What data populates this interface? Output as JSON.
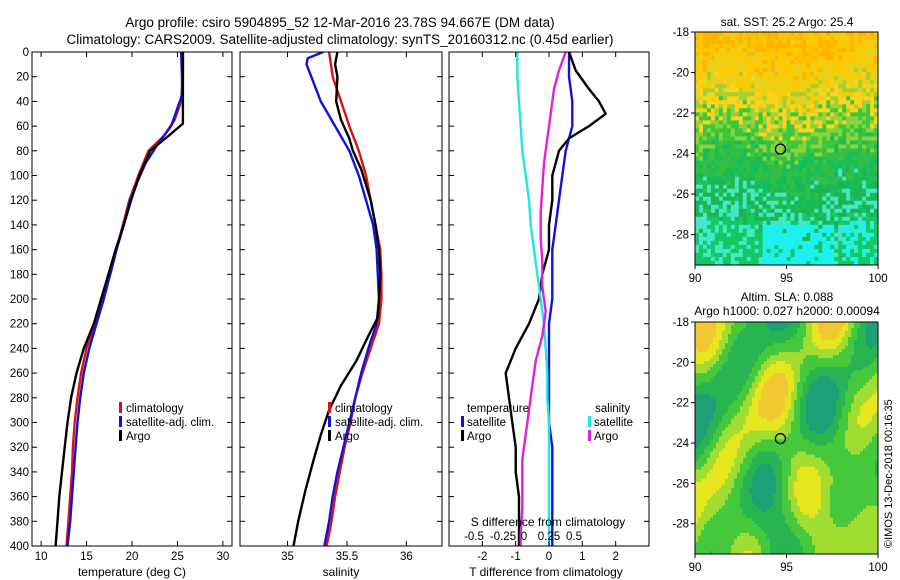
{
  "title": {
    "line1": "Argo profile: csiro 5904895_52 12-Mar-2016 23.78S 94.667E (DM data)",
    "line2": "Climatology: CARS2009. Satellite-adjusted climatology: synTS_20160312.nc (0.45d earlier)"
  },
  "colors": {
    "climatology": "#dd1111",
    "satellite": "#1111dd",
    "argo": "#000000",
    "sal_satellite": "#22e6e6",
    "sal_argo": "#dd22dd"
  },
  "chart_data": [
    {
      "type": "line",
      "id": "temperature",
      "xlabel": "temperature (deg C)",
      "ylabel": "",
      "xlim": [
        9,
        31
      ],
      "ylim": [
        400,
        0
      ],
      "xticks": [
        10,
        15,
        20,
        25,
        30
      ],
      "yticks": [
        0,
        20,
        40,
        60,
        80,
        100,
        120,
        140,
        160,
        180,
        200,
        220,
        240,
        260,
        280,
        300,
        320,
        340,
        360,
        380,
        400
      ],
      "legend": [
        "climatology",
        "satellite-adj. clim.",
        "Argo"
      ],
      "series": [
        {
          "name": "climatology",
          "color": "#dd1111",
          "points": [
            [
              25.6,
              0
            ],
            [
              25.6,
              20
            ],
            [
              25.4,
              40
            ],
            [
              24.7,
              55
            ],
            [
              23.5,
              68
            ],
            [
              21.8,
              80
            ],
            [
              20.7,
              100
            ],
            [
              19.7,
              120
            ],
            [
              19.0,
              140
            ],
            [
              18.3,
              160
            ],
            [
              17.6,
              180
            ],
            [
              16.7,
              200
            ],
            [
              15.9,
              220
            ],
            [
              15.0,
              240
            ],
            [
              14.4,
              260
            ],
            [
              14.0,
              280
            ],
            [
              13.7,
              300
            ],
            [
              13.5,
              320
            ],
            [
              13.4,
              340
            ],
            [
              13.2,
              360
            ],
            [
              13.0,
              380
            ],
            [
              12.8,
              400
            ]
          ]
        },
        {
          "name": "satellite-adj. clim.",
          "color": "#1111dd",
          "points": [
            [
              25.4,
              0
            ],
            [
              25.5,
              20
            ],
            [
              25.5,
              35
            ],
            [
              24.3,
              60
            ],
            [
              22.8,
              75
            ],
            [
              21.5,
              90
            ],
            [
              20.6,
              105
            ],
            [
              19.8,
              120
            ],
            [
              19.1,
              140
            ],
            [
              18.3,
              160
            ],
            [
              17.6,
              180
            ],
            [
              16.9,
              200
            ],
            [
              16.1,
              220
            ],
            [
              15.3,
              240
            ],
            [
              14.7,
              260
            ],
            [
              14.3,
              280
            ],
            [
              14.0,
              300
            ],
            [
              13.8,
              320
            ],
            [
              13.6,
              340
            ],
            [
              13.4,
              360
            ],
            [
              13.2,
              380
            ],
            [
              12.9,
              400
            ]
          ]
        },
        {
          "name": "Argo",
          "color": "#000000",
          "points": [
            [
              25.6,
              0
            ],
            [
              25.6,
              20
            ],
            [
              25.6,
              40
            ],
            [
              25.6,
              58
            ],
            [
              24.0,
              68
            ],
            [
              22.0,
              80
            ],
            [
              20.8,
              100
            ],
            [
              19.9,
              120
            ],
            [
              19.1,
              140
            ],
            [
              18.2,
              160
            ],
            [
              17.4,
              180
            ],
            [
              16.6,
              200
            ],
            [
              15.8,
              220
            ],
            [
              14.7,
              240
            ],
            [
              13.9,
              260
            ],
            [
              13.3,
              280
            ],
            [
              12.9,
              300
            ],
            [
              12.6,
              320
            ],
            [
              12.3,
              340
            ],
            [
              12.0,
              360
            ],
            [
              11.8,
              380
            ],
            [
              11.6,
              400
            ]
          ]
        }
      ]
    },
    {
      "type": "line",
      "id": "salinity",
      "xlabel": "salinity",
      "xlim": [
        34.6,
        36.3
      ],
      "ylim": [
        400,
        0
      ],
      "xticks": [
        35,
        35.5,
        36
      ],
      "legend": [
        "climatology",
        "satellite-adj. clim.",
        "Argo"
      ],
      "series": [
        {
          "name": "climatology",
          "color": "#dd1111",
          "points": [
            [
              35.35,
              0
            ],
            [
              35.38,
              20
            ],
            [
              35.45,
              40
            ],
            [
              35.52,
              60
            ],
            [
              35.6,
              80
            ],
            [
              35.66,
              100
            ],
            [
              35.7,
              120
            ],
            [
              35.74,
              140
            ],
            [
              35.78,
              160
            ],
            [
              35.79,
              180
            ],
            [
              35.79,
              200
            ],
            [
              35.77,
              220
            ],
            [
              35.7,
              240
            ],
            [
              35.63,
              260
            ],
            [
              35.57,
              280
            ],
            [
              35.53,
              300
            ],
            [
              35.48,
              320
            ],
            [
              35.44,
              340
            ],
            [
              35.4,
              360
            ],
            [
              35.37,
              380
            ],
            [
              35.33,
              400
            ]
          ]
        },
        {
          "name": "satellite-adj. clim.",
          "color": "#1111dd",
          "points": [
            [
              35.3,
              0
            ],
            [
              35.17,
              5
            ],
            [
              35.16,
              10
            ],
            [
              35.2,
              20
            ],
            [
              35.28,
              40
            ],
            [
              35.4,
              60
            ],
            [
              35.52,
              80
            ],
            [
              35.6,
              100
            ],
            [
              35.66,
              120
            ],
            [
              35.72,
              140
            ],
            [
              35.75,
              160
            ],
            [
              35.76,
              180
            ],
            [
              35.77,
              200
            ],
            [
              35.75,
              220
            ],
            [
              35.68,
              240
            ],
            [
              35.62,
              260
            ],
            [
              35.57,
              280
            ],
            [
              35.52,
              300
            ],
            [
              35.47,
              320
            ],
            [
              35.42,
              340
            ],
            [
              35.38,
              360
            ],
            [
              35.35,
              380
            ],
            [
              35.31,
              400
            ]
          ]
        },
        {
          "name": "Argo",
          "color": "#000000",
          "points": [
            [
              35.42,
              0
            ],
            [
              35.4,
              10
            ],
            [
              35.42,
              20
            ],
            [
              35.41,
              40
            ],
            [
              35.45,
              55
            ],
            [
              35.52,
              70
            ],
            [
              35.55,
              80
            ],
            [
              35.62,
              95
            ],
            [
              35.7,
              120
            ],
            [
              35.74,
              140
            ],
            [
              35.77,
              160
            ],
            [
              35.78,
              180
            ],
            [
              35.77,
              200
            ],
            [
              35.76,
              215
            ],
            [
              35.68,
              230
            ],
            [
              35.58,
              250
            ],
            [
              35.45,
              270
            ],
            [
              35.35,
              290
            ],
            [
              35.28,
              310
            ],
            [
              35.22,
              330
            ],
            [
              35.15,
              355
            ],
            [
              35.09,
              380
            ],
            [
              35.05,
              400
            ]
          ]
        }
      ]
    },
    {
      "type": "line",
      "id": "differences",
      "xlabel": "T difference from climatology",
      "xlabel2": "S difference from climatology",
      "xlim": [
        -3,
        3
      ],
      "ylim": [
        400,
        0
      ],
      "xticks": [
        -2,
        -1,
        0,
        1,
        2
      ],
      "s_xticks": [
        "-0.5",
        "-0.25",
        "0",
        "0.25",
        "0.5"
      ],
      "legend_temperature": {
        "header": "temperature",
        "items": [
          "satellite",
          "Argo"
        ]
      },
      "legend_salinity": {
        "header": "salinity",
        "items": [
          "satellite",
          "Argo"
        ]
      },
      "series": [
        {
          "name": "temperature satellite",
          "color": "#1111dd",
          "points": [
            [
              0.6,
              0
            ],
            [
              0.6,
              20
            ],
            [
              0.7,
              40
            ],
            [
              0.7,
              60
            ],
            [
              0.5,
              80
            ],
            [
              0.4,
              100
            ],
            [
              0.3,
              120
            ],
            [
              0.2,
              140
            ],
            [
              0.1,
              160
            ],
            [
              0.1,
              180
            ],
            [
              0.1,
              200
            ],
            [
              0.0,
              220
            ],
            [
              0.0,
              240
            ],
            [
              0.0,
              260
            ],
            [
              0.0,
              280
            ],
            [
              0.0,
              300
            ],
            [
              0.1,
              320
            ],
            [
              0.1,
              340
            ],
            [
              0.1,
              360
            ],
            [
              0.1,
              380
            ],
            [
              0.1,
              400
            ]
          ]
        },
        {
          "name": "temperature Argo",
          "color": "#000000",
          "points": [
            [
              0.6,
              0
            ],
            [
              0.8,
              15
            ],
            [
              1.2,
              30
            ],
            [
              1.5,
              40
            ],
            [
              1.7,
              50
            ],
            [
              1.2,
              60
            ],
            [
              0.6,
              70
            ],
            [
              0.3,
              80
            ],
            [
              0.1,
              100
            ],
            [
              0.1,
              120
            ],
            [
              0.0,
              140
            ],
            [
              0.0,
              160
            ],
            [
              -0.2,
              180
            ],
            [
              -0.3,
              200
            ],
            [
              -0.6,
              220
            ],
            [
              -1.0,
              240
            ],
            [
              -1.3,
              260
            ],
            [
              -1.2,
              280
            ],
            [
              -1.1,
              300
            ],
            [
              -1.0,
              320
            ],
            [
              -1.0,
              340
            ],
            [
              -0.9,
              360
            ],
            [
              -0.9,
              380
            ],
            [
              -0.9,
              400
            ]
          ]
        },
        {
          "name": "salinity satellite",
          "color": "#22e6e6",
          "points": [
            [
              -0.95,
              0
            ],
            [
              -0.95,
              20
            ],
            [
              -0.9,
              40
            ],
            [
              -0.85,
              60
            ],
            [
              -0.8,
              80
            ],
            [
              -0.7,
              100
            ],
            [
              -0.6,
              120
            ],
            [
              -0.55,
              140
            ],
            [
              -0.45,
              160
            ],
            [
              -0.35,
              180
            ],
            [
              -0.25,
              200
            ],
            [
              -0.15,
              220
            ],
            [
              -0.1,
              240
            ],
            [
              -0.05,
              260
            ],
            [
              -0.05,
              280
            ],
            [
              0.0,
              300
            ],
            [
              0.0,
              320
            ],
            [
              0.0,
              340
            ],
            [
              0.0,
              360
            ],
            [
              0.0,
              380
            ],
            [
              0.0,
              400
            ]
          ]
        },
        {
          "name": "salinity Argo",
          "color": "#dd22dd",
          "points": [
            [
              0.5,
              0
            ],
            [
              0.3,
              15
            ],
            [
              0.15,
              30
            ],
            [
              0.05,
              50
            ],
            [
              -0.05,
              70
            ],
            [
              -0.15,
              90
            ],
            [
              -0.2,
              110
            ],
            [
              -0.25,
              130
            ],
            [
              -0.25,
              150
            ],
            [
              -0.2,
              170
            ],
            [
              -0.2,
              190
            ],
            [
              -0.1,
              210
            ],
            [
              -0.2,
              230
            ],
            [
              -0.4,
              250
            ],
            [
              -0.5,
              270
            ],
            [
              -0.6,
              290
            ],
            [
              -0.7,
              310
            ],
            [
              -0.8,
              330
            ],
            [
              -0.8,
              350
            ],
            [
              -0.8,
              370
            ],
            [
              -0.85,
              390
            ],
            [
              -0.85,
              400
            ]
          ]
        }
      ]
    },
    {
      "type": "heatmap",
      "id": "sst-map",
      "title": "sat. SST: 25.2 Argo: 25.4",
      "xlim": [
        90,
        100
      ],
      "ylim": [
        -29.5,
        -18
      ],
      "xticks": [
        90,
        95,
        100
      ],
      "yticks": [
        -18,
        -20,
        -22,
        -24,
        -26,
        -28
      ],
      "marker": [
        94.667,
        -23.78
      ]
    },
    {
      "type": "heatmap",
      "id": "sla-map",
      "title": "Altim. SLA: 0.088",
      "subtitle": "Argo h1000: 0.027 h2000: 0.00094",
      "xlim": [
        90,
        100
      ],
      "ylim": [
        -29.5,
        -18
      ],
      "xticks": [
        90,
        95,
        100
      ],
      "yticks": [
        -18,
        -20,
        -22,
        -24,
        -26,
        -28
      ],
      "marker": [
        94.667,
        -23.78
      ]
    }
  ],
  "credit": "©IMOS 13-Dec-2018 00:16:35"
}
